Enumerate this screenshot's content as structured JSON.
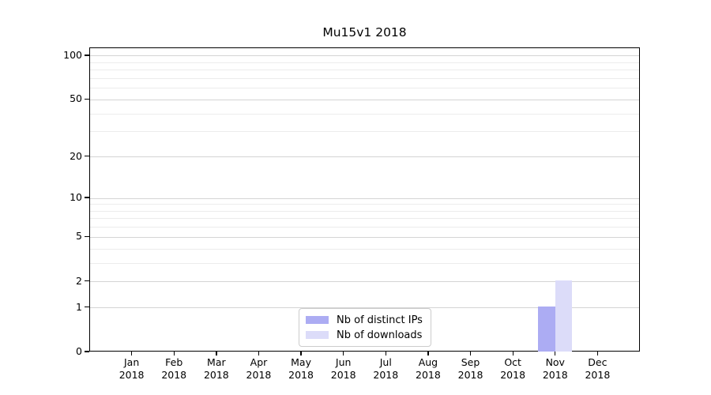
{
  "chart_data": {
    "type": "bar",
    "title": "Mu15v1 2018",
    "categories": [
      "Jan 2018",
      "Feb 2018",
      "Mar 2018",
      "Apr 2018",
      "May 2018",
      "Jun 2018",
      "Jul 2018",
      "Aug 2018",
      "Sep 2018",
      "Oct 2018",
      "Nov 2018",
      "Dec 2018"
    ],
    "series": [
      {
        "name": "Nb of distinct IPs",
        "color": "#acacf3",
        "values": [
          0,
          0,
          0,
          0,
          0,
          0,
          0,
          0,
          0,
          0,
          1,
          0
        ]
      },
      {
        "name": "Nb of downloads",
        "color": "#dcdcf9",
        "values": [
          0,
          0,
          0,
          0,
          0,
          0,
          0,
          0,
          0,
          0,
          2,
          0
        ]
      }
    ],
    "xlabel": "",
    "ylabel": "",
    "yscale": "log(1+y)",
    "ylim": [
      0,
      113
    ],
    "y_major_ticks": [
      0,
      1,
      2,
      5,
      10,
      20,
      50,
      100
    ],
    "y_minor_gridlines": [
      3,
      4,
      6,
      7,
      8,
      9,
      30,
      40,
      60,
      70,
      80,
      90
    ],
    "grid": true,
    "legend_position": "lower center",
    "bar_width_fraction": 0.4,
    "colors": {
      "grid_major": "#d4d4d4",
      "grid_minor": "#ececec",
      "axis": "#000000",
      "background": "#ffffff"
    }
  }
}
